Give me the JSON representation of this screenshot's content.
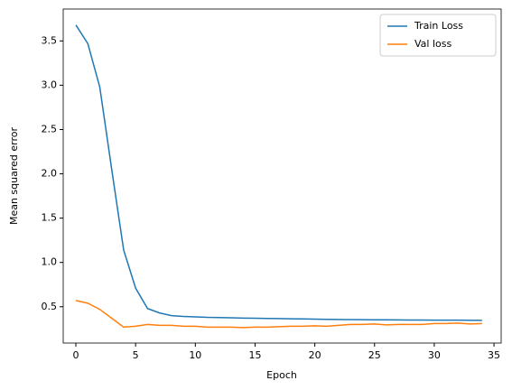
{
  "chart_data": {
    "type": "line",
    "x_label": "Epoch",
    "y_label": "Mean squared error",
    "x": [
      0,
      1,
      2,
      3,
      4,
      5,
      6,
      7,
      8,
      9,
      10,
      11,
      12,
      13,
      14,
      15,
      16,
      17,
      18,
      19,
      20,
      21,
      22,
      23,
      24,
      25,
      26,
      27,
      28,
      29,
      30,
      31,
      32,
      33,
      34
    ],
    "series": [
      {
        "name": "Train Loss",
        "color": "#1f77b4",
        "values": [
          3.68,
          3.47,
          2.98,
          2.05,
          1.14,
          0.71,
          0.48,
          0.43,
          0.4,
          0.39,
          0.385,
          0.38,
          0.378,
          0.375,
          0.372,
          0.37,
          0.368,
          0.366,
          0.364,
          0.362,
          0.36,
          0.358,
          0.356,
          0.355,
          0.354,
          0.353,
          0.352,
          0.351,
          0.35,
          0.35,
          0.349,
          0.348,
          0.348,
          0.347,
          0.346
        ]
      },
      {
        "name": "Val loss",
        "color": "#ff7f0e",
        "values": [
          0.57,
          0.54,
          0.47,
          0.37,
          0.27,
          0.28,
          0.3,
          0.29,
          0.29,
          0.28,
          0.28,
          0.27,
          0.27,
          0.27,
          0.265,
          0.27,
          0.27,
          0.275,
          0.28,
          0.28,
          0.285,
          0.28,
          0.29,
          0.3,
          0.3,
          0.305,
          0.295,
          0.3,
          0.3,
          0.3,
          0.31,
          0.31,
          0.315,
          0.305,
          0.31
        ]
      }
    ],
    "xlim": [
      -1.06,
      35.6
    ],
    "ylim": [
      0.09,
      3.86
    ],
    "xticks": [
      0,
      5,
      10,
      15,
      20,
      25,
      30,
      35
    ],
    "yticks": [
      0.5,
      {
        "value": 1,
        "label": "1.0"
      },
      1.5,
      {
        "value": 2,
        "label": "2.0"
      },
      2.5,
      {
        "value": 3,
        "label": "3.0"
      },
      3.5
    ],
    "legend": "upper right"
  }
}
